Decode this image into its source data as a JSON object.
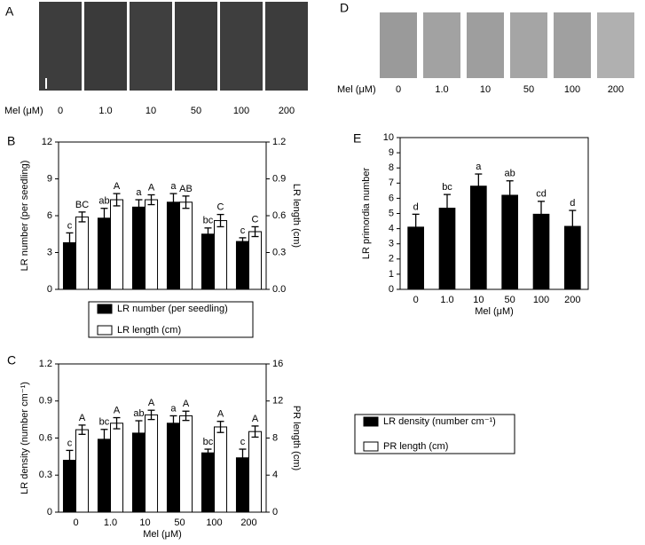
{
  "photo_panels": [
    {
      "label": "A",
      "axis_label": "Mel (μM)",
      "conditions": [
        "0",
        "1.0",
        "10",
        "50",
        "100",
        "200"
      ]
    },
    {
      "label": "D",
      "axis_label": "Mel (μM)",
      "conditions": [
        "0",
        "1.0",
        "10",
        "50",
        "100",
        "200"
      ]
    }
  ],
  "chart_data": [
    {
      "type": "bar",
      "panel_label": "B",
      "y_label": "LR number (per seedling)",
      "y2_label": "LR length (cm)",
      "ylim": [
        0,
        12
      ],
      "yticks": [
        0,
        3,
        6,
        9,
        12
      ],
      "y2lim": [
        0,
        1.2
      ],
      "y2ticks": [
        {
          "value": 0,
          "label": "0.0"
        },
        0.3,
        0.6,
        0.9,
        1.2
      ],
      "series": [
        {
          "name": "LR number (per seedling)",
          "color": "#000000",
          "values": [
            3.8,
            5.8,
            6.7,
            7.1,
            4.5,
            3.9
          ],
          "errors": [
            0.8,
            0.8,
            0.6,
            0.7,
            0.5,
            0.3
          ],
          "letters": [
            "c",
            "ab",
            "a",
            "a",
            "bc",
            "c"
          ]
        },
        {
          "name": "LR length (cm)",
          "color": "#ffffff",
          "axis": "y2",
          "values": [
            0.59,
            0.73,
            0.73,
            0.71,
            0.56,
            0.47
          ],
          "errors": [
            0.04,
            0.05,
            0.04,
            0.05,
            0.05,
            0.04
          ],
          "letters": [
            "BC",
            "A",
            "A",
            "AB",
            "C",
            "C"
          ]
        }
      ]
    },
    {
      "type": "bar",
      "panel_label": "C",
      "y_label": "LR density (number cm⁻¹)",
      "y2_label": "PR length (cm)",
      "x_label": "Mel (μM)",
      "categories": [
        "0",
        "1.0",
        "10",
        "50",
        "100",
        "200"
      ],
      "ylim": [
        0,
        1.2
      ],
      "yticks": [
        0,
        0.3,
        0.6,
        0.9,
        1.2
      ],
      "y2lim": [
        0,
        16
      ],
      "y2ticks": [
        0,
        4,
        8,
        12,
        16
      ],
      "series": [
        {
          "name": "LR density (number cm⁻¹)",
          "color": "#000000",
          "values": [
            0.42,
            0.59,
            0.64,
            0.72,
            0.48,
            0.44
          ],
          "errors": [
            0.08,
            0.08,
            0.1,
            0.06,
            0.03,
            0.07
          ],
          "letters": [
            "c",
            "bc",
            "ab",
            "a",
            "bc",
            "c"
          ]
        },
        {
          "name": "PR length (cm)",
          "color": "#ffffff",
          "axis": "y2",
          "values": [
            8.9,
            9.6,
            10.5,
            10.4,
            9.2,
            8.7
          ],
          "errors": [
            0.5,
            0.6,
            0.5,
            0.5,
            0.6,
            0.6
          ],
          "letters": [
            "A",
            "A",
            "A",
            "A",
            "A",
            "A"
          ]
        }
      ]
    },
    {
      "type": "bar",
      "panel_label": "E",
      "y_label": "LR primordia number",
      "x_label": "Mel (μM)",
      "categories": [
        "0",
        "1.0",
        "10",
        "50",
        "100",
        "200"
      ],
      "ylim": [
        0,
        10
      ],
      "yticks": [
        0,
        1,
        2,
        3,
        4,
        5,
        6,
        7,
        8,
        9,
        10
      ],
      "series": [
        {
          "name": "LR primordia number",
          "color": "#000000",
          "values": [
            4.1,
            5.35,
            6.8,
            6.2,
            4.95,
            4.15
          ],
          "errors": [
            0.85,
            0.9,
            0.8,
            0.95,
            0.85,
            1.05
          ],
          "letters": [
            "d",
            "bc",
            "a",
            "ab",
            "cd",
            "d"
          ]
        }
      ]
    }
  ]
}
